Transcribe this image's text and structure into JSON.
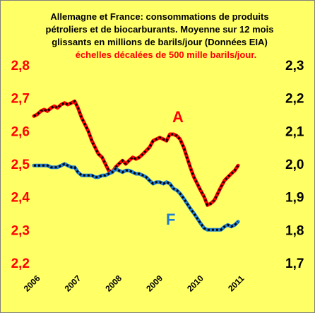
{
  "chart_data": {
    "type": "line",
    "title_lines": [
      "Allemagne et France: consommations de produits",
      "pétroliers et de biocarburants. Moyenne sur 12 mois",
      "glissants en millions de barils/jour (Données  EIA)"
    ],
    "subtitle": "échelles décalées de 500 mille barils/jour.",
    "x_ticks": [
      "2006",
      "2007",
      "2008",
      "2009",
      "2010",
      "2011"
    ],
    "xlim": [
      2006,
      2011.5
    ],
    "y_left": {
      "ticks": [
        "2,2",
        "2,3",
        "2,4",
        "2,5",
        "2,6",
        "2,7",
        "2,8"
      ],
      "lim": [
        2.2,
        2.8
      ]
    },
    "y_right": {
      "ticks": [
        "1,7",
        "1,8",
        "1,9",
        "2,0",
        "2,1",
        "2,2",
        "2,3"
      ],
      "lim": [
        1.7,
        2.3
      ]
    },
    "grid": false,
    "colors": {
      "background": "#ffff66",
      "series_a": "#ff0000",
      "series_f": "#1f7ecf",
      "dash": "#000000",
      "left_axis_text": "#ff0000",
      "subtitle_text": "#ff0000"
    },
    "series": [
      {
        "name": "A",
        "axis": "left",
        "x": [
          2006.0,
          2006.08,
          2006.17,
          2006.25,
          2006.33,
          2006.42,
          2006.5,
          2006.58,
          2006.67,
          2006.75,
          2006.83,
          2006.92,
          2007.0,
          2007.08,
          2007.17,
          2007.25,
          2007.33,
          2007.42,
          2007.5,
          2007.58,
          2007.67,
          2007.75,
          2007.83,
          2007.92,
          2008.0,
          2008.08,
          2008.17,
          2008.25,
          2008.33,
          2008.42,
          2008.5,
          2008.58,
          2008.67,
          2008.75,
          2008.83,
          2008.92,
          2009.0,
          2009.08,
          2009.17,
          2009.25,
          2009.33,
          2009.42,
          2009.5,
          2009.58,
          2009.67,
          2009.75,
          2009.83,
          2009.92,
          2010.0,
          2010.08,
          2010.17,
          2010.25,
          2010.33,
          2010.42,
          2010.5,
          2010.58,
          2010.67,
          2010.75,
          2010.83,
          2010.92,
          2011.0
        ],
        "y": [
          2.645,
          2.65,
          2.66,
          2.665,
          2.66,
          2.67,
          2.675,
          2.67,
          2.68,
          2.685,
          2.68,
          2.685,
          2.69,
          2.67,
          2.64,
          2.62,
          2.6,
          2.57,
          2.55,
          2.53,
          2.52,
          2.5,
          2.48,
          2.475,
          2.49,
          2.5,
          2.51,
          2.5,
          2.51,
          2.52,
          2.515,
          2.52,
          2.53,
          2.54,
          2.55,
          2.57,
          2.575,
          2.58,
          2.575,
          2.57,
          2.59,
          2.59,
          2.585,
          2.575,
          2.55,
          2.52,
          2.49,
          2.46,
          2.44,
          2.42,
          2.4,
          2.375,
          2.38,
          2.39,
          2.41,
          2.43,
          2.45,
          2.46,
          2.47,
          2.48,
          2.495
        ]
      },
      {
        "name": "F",
        "axis": "right",
        "x": [
          2006.0,
          2006.08,
          2006.17,
          2006.25,
          2006.33,
          2006.42,
          2006.5,
          2006.58,
          2006.67,
          2006.75,
          2006.83,
          2006.92,
          2007.0,
          2007.08,
          2007.17,
          2007.25,
          2007.33,
          2007.42,
          2007.5,
          2007.58,
          2007.67,
          2007.75,
          2007.83,
          2007.92,
          2008.0,
          2008.08,
          2008.17,
          2008.25,
          2008.33,
          2008.42,
          2008.5,
          2008.58,
          2008.67,
          2008.75,
          2008.83,
          2008.92,
          2009.0,
          2009.08,
          2009.17,
          2009.25,
          2009.33,
          2009.42,
          2009.5,
          2009.58,
          2009.67,
          2009.75,
          2009.83,
          2009.92,
          2010.0,
          2010.08,
          2010.17,
          2010.25,
          2010.33,
          2010.42,
          2010.5,
          2010.58,
          2010.67,
          2010.75,
          2010.83,
          2010.92,
          2011.0
        ],
        "y": [
          1.995,
          1.995,
          1.995,
          1.995,
          1.995,
          1.99,
          1.99,
          1.99,
          1.995,
          2.0,
          1.995,
          1.99,
          1.99,
          1.975,
          1.965,
          1.965,
          1.965,
          1.965,
          1.96,
          1.96,
          1.965,
          1.965,
          1.97,
          1.975,
          1.985,
          1.98,
          1.975,
          1.98,
          1.98,
          1.975,
          1.97,
          1.97,
          1.965,
          1.96,
          1.95,
          1.94,
          1.945,
          1.945,
          1.94,
          1.945,
          1.94,
          1.925,
          1.92,
          1.91,
          1.895,
          1.88,
          1.865,
          1.85,
          1.835,
          1.82,
          1.805,
          1.8,
          1.8,
          1.8,
          1.8,
          1.8,
          1.81,
          1.815,
          1.81,
          1.815,
          1.825
        ]
      }
    ]
  }
}
